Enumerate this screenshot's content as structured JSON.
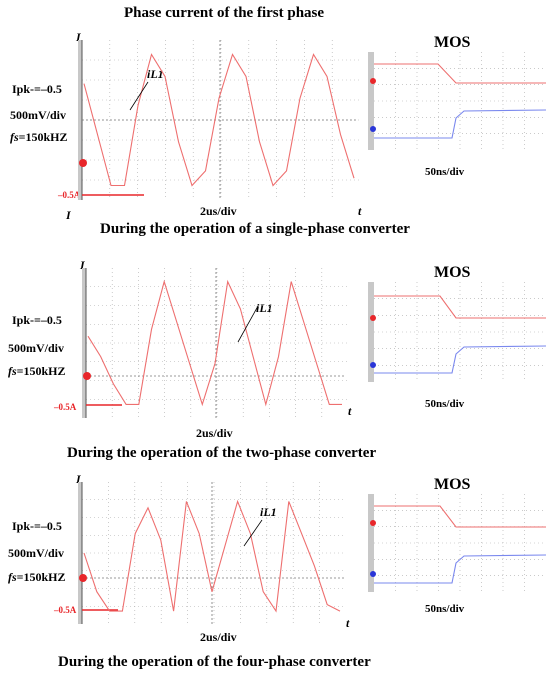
{
  "colors": {
    "trace": "#ee6f6f",
    "marker_red": "#e8262a",
    "marker_blue": "#2a36d8",
    "gate_blue": "#7a88ee"
  },
  "panel1": {
    "title": "Phase current of the first phase",
    "axis_y": "I",
    "axis_y_bottom": "I",
    "axis_x": "t",
    "ipk": "Ipk-=–0.5",
    "vdiv": "500mV/div",
    "fs_prefix": "fs",
    "fs_value": "=150kHZ",
    "neg_label": "–0.5A",
    "xdiv": "2us/div",
    "trace_label": "iL1",
    "mos_title": "MOS",
    "mos_div": "50ns/div",
    "caption": "During the operation of a single-phase converter"
  },
  "panel2": {
    "axis_y": "I",
    "axis_x": "t",
    "ipk": "Ipk-=–0.5",
    "vdiv": "500mV/div",
    "fs_prefix": "fs",
    "fs_value": "=150kHZ",
    "neg_label": "–0.5A",
    "xdiv": "2us/div",
    "trace_label": "iL1",
    "mos_title": "MOS",
    "mos_div": "50ns/div",
    "caption": "During the operation of the two-phase converter"
  },
  "panel3": {
    "axis_y": "I",
    "axis_x": "t",
    "ipk": "Ipk-=–0.5",
    "vdiv": "500mV/div",
    "fs_prefix": "fs",
    "fs_value": "=150kHZ",
    "neg_label": "–0.5A",
    "xdiv": "2us/div",
    "trace_label": "iL1",
    "mos_title": "MOS",
    "mos_div": "50ns/div",
    "caption": "During the operation of the four-phase converter"
  },
  "chart_data": [
    {
      "type": "line",
      "series": [
        {
          "name": "iL1",
          "x": [
            0,
            0.5,
            1,
            1.5,
            2,
            2.5,
            3,
            3.5,
            4,
            4.5,
            5,
            5.5,
            6,
            6.5,
            7,
            7.5,
            8,
            8.5,
            9,
            9.5,
            10
          ],
          "y": [
            0.5,
            -0.2,
            -0.9,
            -0.9,
            0.2,
            0.9,
            0.6,
            -0.3,
            -0.9,
            -0.7,
            0.3,
            0.9,
            0.6,
            -0.3,
            -0.9,
            -0.7,
            0.3,
            0.9,
            0.6,
            -0.2,
            -0.8
          ]
        }
      ],
      "ylabel": "I",
      "xlabel": "t"
    },
    {
      "type": "line",
      "series": [
        {
          "name": "iL1",
          "x": [
            0,
            0.5,
            1,
            1.5,
            2,
            2.5,
            3,
            3.5,
            4,
            4.5,
            5,
            5.5,
            6,
            6.5,
            7,
            7.5,
            8,
            8.5,
            9,
            9.5,
            10
          ],
          "y": [
            0.1,
            -0.2,
            -0.6,
            -0.9,
            -0.9,
            0.2,
            0.9,
            0.3,
            -0.3,
            -0.9,
            -0.3,
            0.9,
            0.5,
            -0.2,
            -0.9,
            -0.2,
            0.9,
            0.3,
            -0.3,
            -0.9,
            -0.9
          ]
        }
      ],
      "ylabel": "I",
      "xlabel": "t"
    },
    {
      "type": "line",
      "series": [
        {
          "name": "iL1",
          "x": [
            0,
            0.5,
            1,
            1.5,
            2,
            2.5,
            3,
            3.5,
            4,
            4.5,
            5,
            5.5,
            6,
            6.5,
            7,
            7.5,
            8,
            8.5,
            9,
            9.5,
            10
          ],
          "y": [
            0.0,
            -0.6,
            -0.9,
            -0.9,
            0.3,
            0.7,
            0.2,
            -0.9,
            0.8,
            0.3,
            -0.6,
            0.1,
            0.8,
            0.3,
            -0.6,
            -0.9,
            0.8,
            0.3,
            -0.2,
            -0.8,
            -0.9
          ]
        }
      ],
      "ylabel": "I",
      "xlabel": "t"
    }
  ]
}
